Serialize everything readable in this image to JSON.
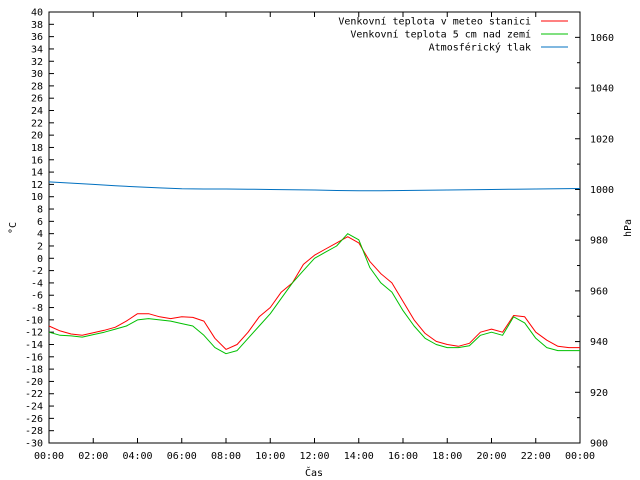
{
  "chart_data": {
    "type": "line",
    "title": "",
    "xlabel": "Čas",
    "ylabel_left": "°C",
    "ylabel_right": "hPa",
    "x_ticks": [
      "00:00",
      "02:00",
      "04:00",
      "06:00",
      "08:00",
      "10:00",
      "12:00",
      "14:00",
      "16:00",
      "18:00",
      "20:00",
      "22:00",
      "00:00"
    ],
    "x_range_hours": [
      0,
      24
    ],
    "y_left_range": [
      -30,
      40
    ],
    "y_left_ticks": [
      -30,
      -28,
      -26,
      -24,
      -22,
      -20,
      -18,
      -16,
      -14,
      -12,
      -10,
      -8,
      -6,
      -4,
      -2,
      0,
      2,
      4,
      6,
      8,
      10,
      12,
      14,
      16,
      18,
      20,
      22,
      24,
      26,
      28,
      30,
      32,
      34,
      36,
      38,
      40
    ],
    "y_right_range": [
      900,
      1070
    ],
    "y_right_ticks": [
      900,
      920,
      940,
      960,
      980,
      1000,
      1020,
      1040,
      1060
    ],
    "grid": false,
    "legend_position": "top-right",
    "series": [
      {
        "name": "Venkovní teplota v meteo stanici",
        "color": "#ff0000",
        "axis": "left",
        "x": [
          0,
          0.5,
          1,
          1.5,
          2,
          2.5,
          3,
          3.5,
          4,
          4.5,
          5,
          5.5,
          6,
          6.5,
          7,
          7.5,
          8,
          8.5,
          9,
          9.5,
          10,
          10.5,
          11,
          11.5,
          12,
          12.5,
          13,
          13.5,
          14,
          14.5,
          15,
          15.5,
          16,
          16.5,
          17,
          17.5,
          18,
          18.5,
          19,
          19.5,
          20,
          20.5,
          21,
          21.5,
          22,
          22.5,
          23,
          23.5,
          24
        ],
        "values": [
          -11,
          -11.8,
          -12.3,
          -12.5,
          -12.1,
          -11.7,
          -11.2,
          -10.2,
          -9,
          -9,
          -9.5,
          -9.8,
          -9.5,
          -9.6,
          -10.2,
          -13,
          -14.8,
          -14,
          -12,
          -9.5,
          -8,
          -5.5,
          -4,
          -1,
          0.5,
          1.5,
          2.5,
          3.5,
          2.5,
          -0.5,
          -2.5,
          -4,
          -7,
          -10,
          -12.2,
          -13.5,
          -14,
          -14.3,
          -13.8,
          -12,
          -11.5,
          -12,
          -9.3,
          -9.5,
          -12,
          -13.3,
          -14.3,
          -14.5,
          -14.5
        ]
      },
      {
        "name": "Venkovní teplota 5 cm nad zemí",
        "color": "#00c000",
        "axis": "left",
        "x": [
          0,
          0.5,
          1,
          1.5,
          2,
          2.5,
          3,
          3.5,
          4,
          4.5,
          5,
          5.5,
          6,
          6.5,
          7,
          7.5,
          8,
          8.5,
          9,
          9.5,
          10,
          10.5,
          11,
          11.5,
          12,
          12.5,
          13,
          13.5,
          14,
          14.5,
          15,
          15.5,
          16,
          16.5,
          17,
          17.5,
          18,
          18.5,
          19,
          19.5,
          20,
          20.5,
          21,
          21.5,
          22,
          22.5,
          23,
          23.5,
          24
        ],
        "values": [
          -12,
          -12.5,
          -12.6,
          -12.8,
          -12.4,
          -12,
          -11.5,
          -11,
          -10,
          -9.8,
          -10,
          -10.2,
          -10.6,
          -11,
          -12.5,
          -14.5,
          -15.5,
          -15,
          -13,
          -11,
          -9,
          -6.5,
          -4,
          -2,
          0,
          1,
          2,
          4,
          3,
          -1.5,
          -4,
          -5.5,
          -8.5,
          -11,
          -13,
          -14,
          -14.5,
          -14.5,
          -14.2,
          -12.5,
          -12,
          -12.5,
          -9.5,
          -10.5,
          -13,
          -14.5,
          -15,
          -15,
          -15
        ]
      },
      {
        "name": "Atmosférický tlak",
        "color": "#0070c0",
        "axis": "right",
        "x": [
          0,
          1,
          2,
          3,
          4,
          5,
          6,
          7,
          8,
          9,
          10,
          11,
          12,
          13,
          14,
          15,
          16,
          17,
          18,
          19,
          20,
          21,
          22,
          23,
          24
        ],
        "values": [
          1003,
          1002.5,
          1002,
          1001.5,
          1001,
          1000.6,
          1000.3,
          1000.2,
          1000.2,
          1000.1,
          1000,
          999.9,
          999.8,
          999.6,
          999.5,
          999.5,
          999.6,
          999.7,
          999.8,
          999.9,
          1000,
          1000.1,
          1000.2,
          1000.3,
          1000.4
        ]
      }
    ]
  }
}
